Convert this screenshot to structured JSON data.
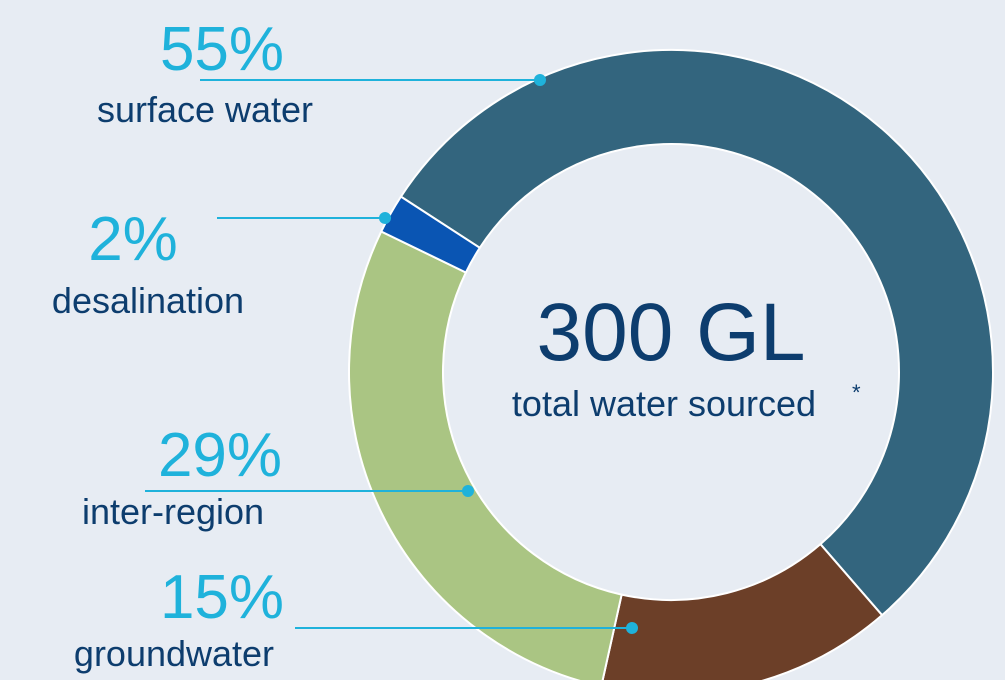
{
  "chart_data": {
    "type": "pie",
    "donut": true,
    "center": {
      "value": "300 GL",
      "label": "total water sourced",
      "footnote_mark": "*"
    },
    "slices": [
      {
        "key": "surface",
        "label": "surface water",
        "percent_label": "55%",
        "value": 55,
        "color": "#33657e"
      },
      {
        "key": "groundwater",
        "label": "groundwater",
        "percent_label": "15%",
        "value": 15,
        "color": "#6c3f28"
      },
      {
        "key": "inter",
        "label": "inter-region",
        "percent_label": "29%",
        "value": 29,
        "color": "#aac583"
      },
      {
        "key": "desal",
        "label": "desalination",
        "percent_label": "2%",
        "value": 2,
        "color": "#0a55b3"
      }
    ],
    "leader_color": "#1fb2db"
  }
}
